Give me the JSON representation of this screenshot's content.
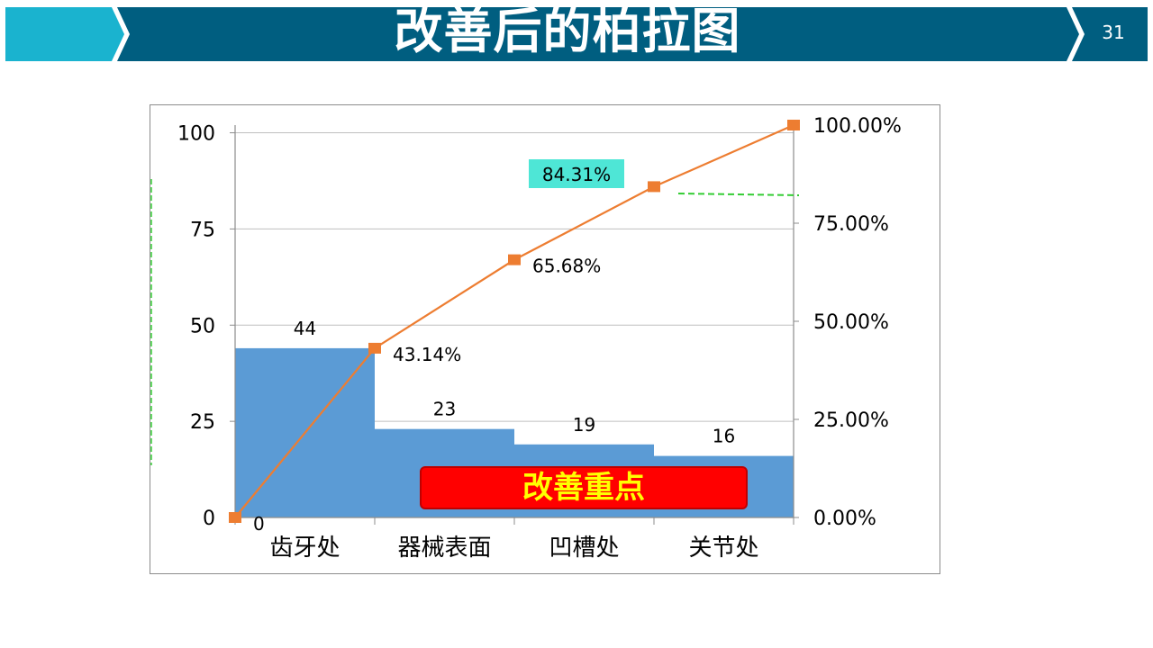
{
  "slide": {
    "title": "改善后的柏拉图",
    "page_number": "31",
    "colors": {
      "header_dark": "#005e80",
      "header_light": "#1ab3cf"
    }
  },
  "callouts": {
    "focus_label": "改善重点",
    "highlight_value": "84.31%",
    "highlight_color": "#4ee6d6"
  },
  "chart_data": {
    "type": "bar",
    "categories": [
      "齿牙处",
      "器械表面",
      "凹槽处",
      "关节处"
    ],
    "series": [
      {
        "values": [
          44,
          23,
          19,
          16
        ],
        "labels": [
          "44",
          "23",
          "19",
          "16"
        ],
        "color": "#5b9bd5"
      },
      {
        "type": "line",
        "axis": "right",
        "x": [
          0,
          1,
          2,
          3,
          4
        ],
        "values": [
          0,
          43.14,
          65.68,
          84.31,
          100
        ],
        "labels": [
          "0",
          "43.14%",
          "65.68%",
          "",
          ""
        ],
        "color": "#ed7d31"
      }
    ],
    "y_ticks": [
      "0",
      "25",
      "50",
      "75",
      "100"
    ],
    "y2_ticks": [
      "0.00%",
      "25.00%",
      "50.00%",
      "75.00%",
      "100.00%"
    ],
    "ylim": [
      0,
      102
    ],
    "y2lim": [
      0,
      100
    ],
    "grid": true,
    "legend": "none"
  }
}
